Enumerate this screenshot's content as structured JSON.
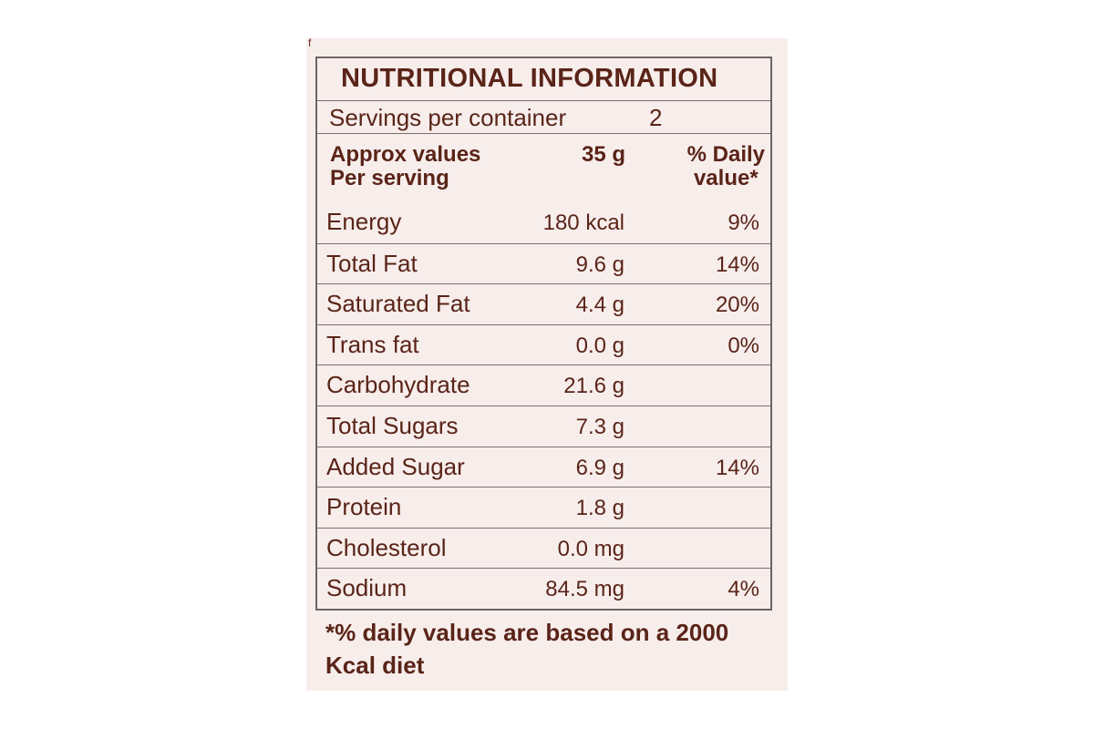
{
  "label": {
    "stray_mark": "f",
    "title": "NUTRITIONAL INFORMATION",
    "servings_label": "Servings per container",
    "servings_value": "2",
    "header": {
      "col1_line1": "Approx values",
      "col1_line2": "Per serving",
      "col2": "35 g",
      "col3_line1": "% Daily",
      "col3_line2": "value*"
    },
    "nutrients": [
      {
        "name": "Energy",
        "amount": "180 kcal",
        "dv": "9%"
      },
      {
        "name": "Total Fat",
        "amount": "9.6 g",
        "dv": "14%"
      },
      {
        "name": "Saturated Fat",
        "amount": "4.4 g",
        "dv": "20%"
      },
      {
        "name": "Trans fat",
        "amount": "0.0 g",
        "dv": "0%"
      },
      {
        "name": "Carbohydrate",
        "amount": "21.6 g",
        "dv": ""
      },
      {
        "name": "Total Sugars",
        "amount": "7.3 g",
        "dv": ""
      },
      {
        "name": "Added Sugar",
        "amount": "6.9 g",
        "dv": "14%"
      },
      {
        "name": "Protein",
        "amount": "1.8 g",
        "dv": ""
      },
      {
        "name": "Cholesterol",
        "amount": "0.0 mg",
        "dv": ""
      },
      {
        "name": "Sodium",
        "amount": "84.5 mg",
        "dv": "4%"
      }
    ],
    "footnote": "*% daily values are based on a 2000 Kcal diet"
  },
  "colors": {
    "text": "#5a2418",
    "border": "#6e6464",
    "paper": "#f7eeec"
  }
}
